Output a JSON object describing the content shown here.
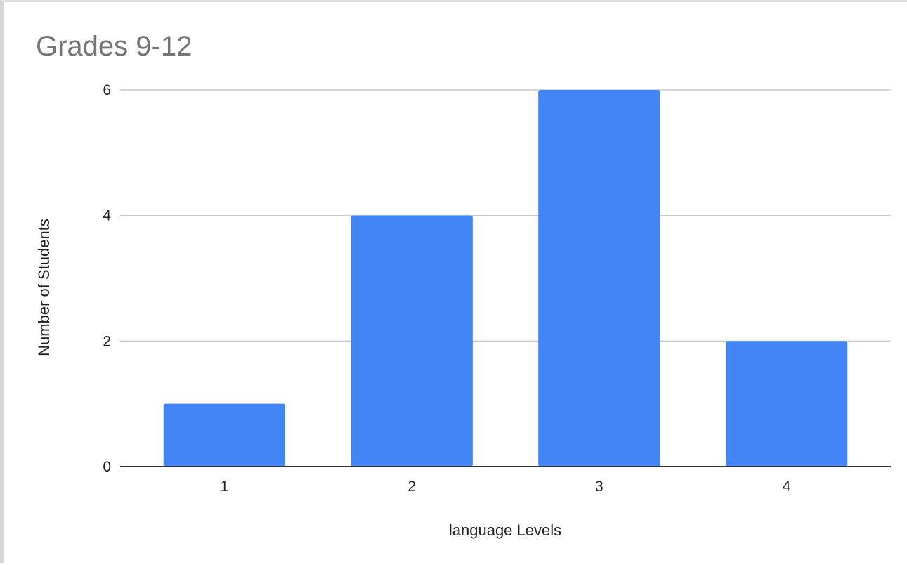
{
  "chart_data": {
    "type": "bar",
    "title": "Grades 9-12",
    "xlabel": "language Levels",
    "ylabel": "Number of Students",
    "categories": [
      "1",
      "2",
      "3",
      "4"
    ],
    "values": [
      1,
      4,
      6,
      2
    ],
    "ylim": [
      0,
      6
    ],
    "yticks": [
      "0",
      "2",
      "4",
      "6"
    ],
    "grid": true,
    "legend": "none",
    "bar_color": "#4285f4",
    "grid_color": "#cccccc",
    "axis_color": "#333333"
  }
}
